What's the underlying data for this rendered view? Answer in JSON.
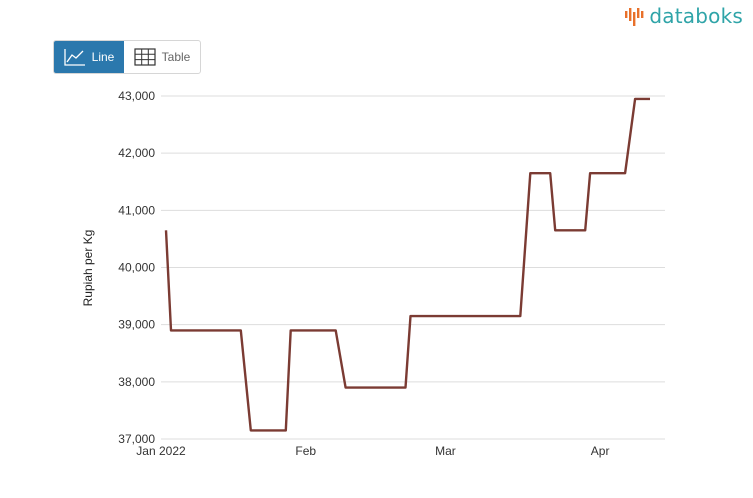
{
  "brand": {
    "name": "databoks",
    "icon": "databoks-logo-icon",
    "color": "#2fa4a8"
  },
  "view_toggle": {
    "line_label": "Line",
    "table_label": "Table",
    "active": "line",
    "active_color": "#2b78ad"
  },
  "chart_data": {
    "type": "line",
    "title": "",
    "xlabel": "",
    "ylabel": "Rupiah per Kg",
    "ylim": [
      37000,
      43000
    ],
    "y_ticks": [
      {
        "value": 37000,
        "label": "37,000"
      },
      {
        "value": 38000,
        "label": "38,000"
      },
      {
        "value": 39000,
        "label": "39,000"
      },
      {
        "value": 40000,
        "label": "40,000"
      },
      {
        "value": 41000,
        "label": "41,000"
      },
      {
        "value": 42000,
        "label": "42,000"
      },
      {
        "value": 43000,
        "label": "43,000"
      }
    ],
    "x_ticks": [
      {
        "date": "2022-01-03",
        "label": "Jan 2022"
      },
      {
        "date": "2022-02-01",
        "label": "Feb"
      },
      {
        "date": "2022-03-01",
        "label": "Mar"
      },
      {
        "date": "2022-04-01",
        "label": "Apr"
      }
    ],
    "xlim": [
      "2022-01-03",
      "2022-04-14"
    ],
    "grid": true,
    "legend": "none",
    "series": [
      {
        "color": "#7b3b33",
        "points": [
          {
            "x": "2022-01-04",
            "y": 40650
          },
          {
            "x": "2022-01-05",
            "y": 38900
          },
          {
            "x": "2022-01-19",
            "y": 38900
          },
          {
            "x": "2022-01-21",
            "y": 37150
          },
          {
            "x": "2022-01-28",
            "y": 37150
          },
          {
            "x": "2022-01-29",
            "y": 38900
          },
          {
            "x": "2022-02-07",
            "y": 38900
          },
          {
            "x": "2022-02-09",
            "y": 37900
          },
          {
            "x": "2022-02-21",
            "y": 37900
          },
          {
            "x": "2022-02-22",
            "y": 39150
          },
          {
            "x": "2022-03-16",
            "y": 39150
          },
          {
            "x": "2022-03-18",
            "y": 41650
          },
          {
            "x": "2022-03-22",
            "y": 41650
          },
          {
            "x": "2022-03-23",
            "y": 40650
          },
          {
            "x": "2022-03-29",
            "y": 40650
          },
          {
            "x": "2022-03-30",
            "y": 41650
          },
          {
            "x": "2022-04-06",
            "y": 41650
          },
          {
            "x": "2022-04-08",
            "y": 42950
          },
          {
            "x": "2022-04-11",
            "y": 42950
          }
        ]
      }
    ]
  }
}
